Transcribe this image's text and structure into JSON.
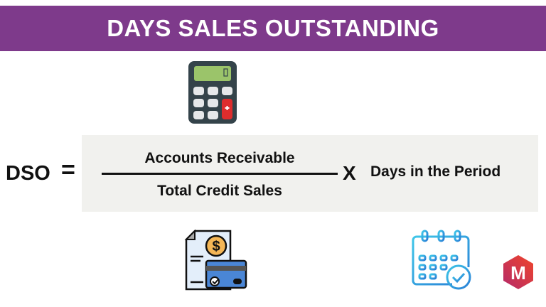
{
  "title": "DAYS SALES OUTSTANDING",
  "formula": {
    "lhs": "DSO",
    "equals": "=",
    "numerator": "Accounts Receivable",
    "denominator": "Total Credit Sales",
    "times": "X",
    "multiplier": "Days in the Period"
  },
  "icons": {
    "top": "calculator-icon",
    "bottom_left": "invoice-credit-card-icon",
    "bottom_right": "calendar-check-icon",
    "logo": "m-hexagon-logo",
    "logo_letter": "M"
  },
  "colors": {
    "banner": "#7e3a8b",
    "box": "#f1f1ee",
    "logo": "#e0342f"
  }
}
